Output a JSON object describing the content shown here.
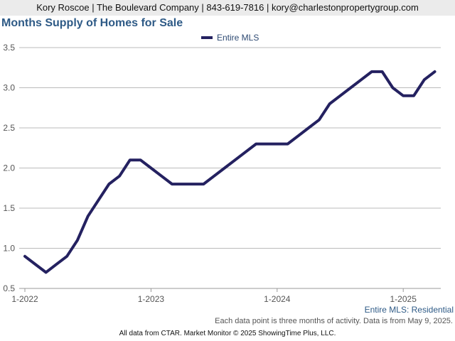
{
  "header": {
    "text": "Kory Roscoe | The Boulevard Company | 843-619-7816 | kory@charlestonpropertygroup.com"
  },
  "colors": {
    "series": "#242160",
    "grid": "#bbbbbb",
    "title": "#2e5a86",
    "header_bg": "#ebebeb"
  },
  "chart_data": {
    "type": "line",
    "title": "Months Supply of Homes for Sale",
    "xlabel": "",
    "ylabel": "",
    "x_tick_labels": [
      "1-2022",
      "1-2023",
      "1-2024",
      "1-2025"
    ],
    "y_ticks": [
      0.5,
      1.0,
      1.5,
      2.0,
      2.5,
      3.0,
      3.5
    ],
    "y_tick_labels": [
      "0.5",
      "1.0",
      "1.5",
      "2.0",
      "2.5",
      "3.0",
      "3.5"
    ],
    "ylim": [
      0.5,
      3.5
    ],
    "grid": true,
    "legend_position": "top-center",
    "series": [
      {
        "name": "Entire MLS",
        "x": [
          "2022-01",
          "2022-02",
          "2022-03",
          "2022-04",
          "2022-05",
          "2022-06",
          "2022-07",
          "2022-08",
          "2022-09",
          "2022-10",
          "2022-11",
          "2022-12",
          "2023-01",
          "2023-02",
          "2023-03",
          "2023-04",
          "2023-05",
          "2023-06",
          "2023-07",
          "2023-08",
          "2023-09",
          "2023-10",
          "2023-11",
          "2023-12",
          "2024-01",
          "2024-02",
          "2024-03",
          "2024-04",
          "2024-05",
          "2024-06",
          "2024-07",
          "2024-08",
          "2024-09",
          "2024-10",
          "2024-11",
          "2024-12",
          "2025-01",
          "2025-02",
          "2025-03",
          "2025-04"
        ],
        "values": [
          0.9,
          0.8,
          0.7,
          0.8,
          0.9,
          1.1,
          1.4,
          1.6,
          1.8,
          1.9,
          2.1,
          2.1,
          2.0,
          1.9,
          1.8,
          1.8,
          1.8,
          1.8,
          1.9,
          2.0,
          2.1,
          2.2,
          2.3,
          2.3,
          2.3,
          2.3,
          2.4,
          2.5,
          2.6,
          2.8,
          2.9,
          3.0,
          3.1,
          3.2,
          3.2,
          3.0,
          2.9,
          2.9,
          3.1,
          3.2
        ]
      }
    ]
  },
  "footer": {
    "series_label": "Entire MLS: Residential",
    "note": "Each data point is three months of activity. Data is from May 9, 2025.",
    "credit": "All data from CTAR. Market Monitor © 2025 ShowingTime Plus, LLC."
  }
}
